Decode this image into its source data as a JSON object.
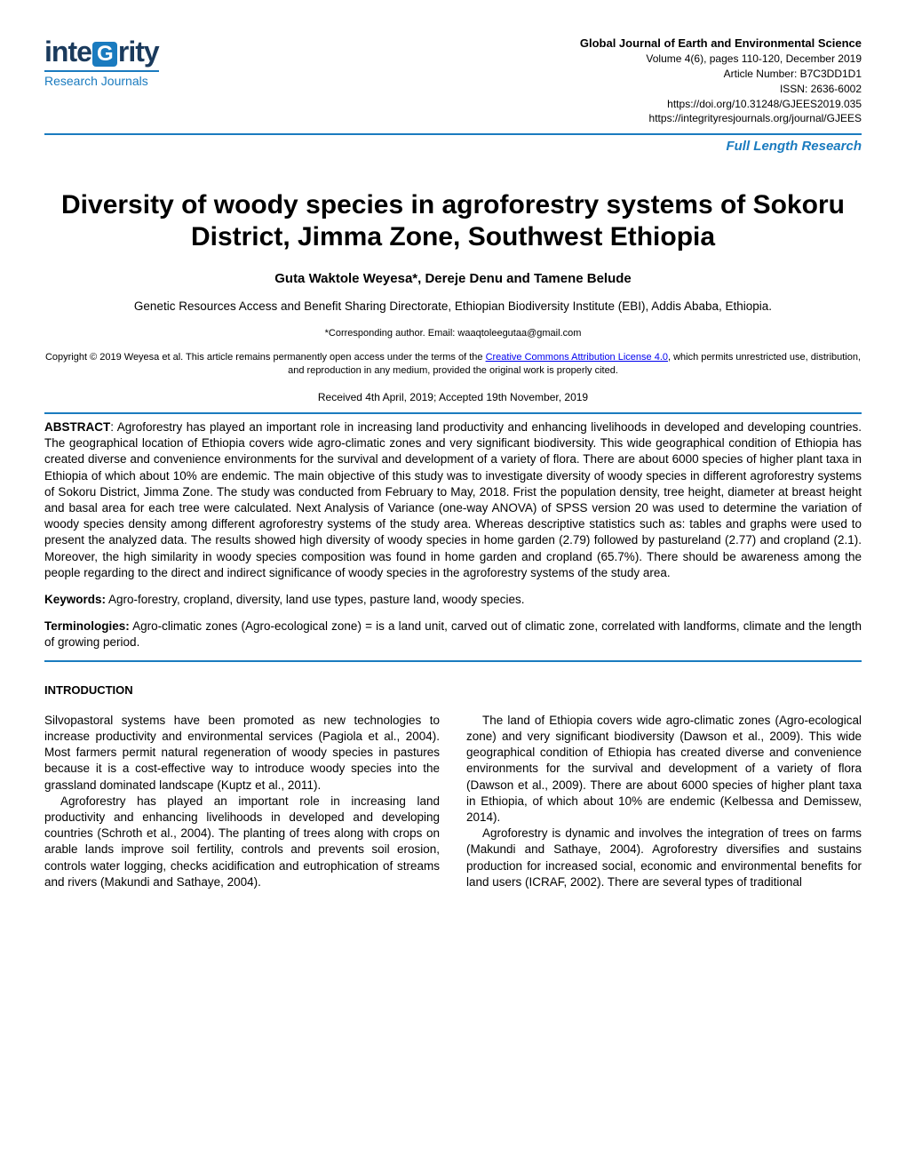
{
  "logo": {
    "main_pre": "inte",
    "main_g": "G",
    "main_post": "rity",
    "sub": "Research Journals"
  },
  "journal": {
    "title": "Global Journal of Earth and Environmental Science",
    "volume": "Volume 4(6), pages 110-120, December 2019",
    "article_number": "Article Number: B7C3DD1D1",
    "issn": "ISSN: 2636-6002",
    "doi": "https://doi.org/10.31248/GJEES2019.035",
    "url": "https://integrityresjournals.org/journal/GJEES"
  },
  "article_type": "Full Length Research",
  "title": "Diversity of woody species in agroforestry systems of Sokoru District, Jimma Zone, Southwest Ethiopia",
  "authors": "Guta Waktole Weyesa*, Dereje Denu and Tamene Belude",
  "affiliation": "Genetic Resources Access and Benefit Sharing Directorate, Ethiopian Biodiversity Institute (EBI), Addis Ababa, Ethiopia.",
  "corresponding": "*Corresponding author. Email: waaqtoleegutaa@gmail.com",
  "copyright_pre": "Copyright © 2019 Weyesa et al. This article remains permanently open access under the terms of the ",
  "copyright_link": "Creative Commons Attribution License 4.0",
  "copyright_post": ", which permits unrestricted use, distribution, and reproduction in any medium, provided the original work is properly cited.",
  "dates": "Received 4th April, 2019; Accepted 19th November, 2019",
  "abstract_label": "ABSTRACT",
  "abstract": ": Agroforestry has played an important role in increasing land productivity and enhancing livelihoods in developed and developing countries. The geographical location of Ethiopia covers wide agro-climatic zones and very significant biodiversity. This wide geographical condition of Ethiopia has created diverse and convenience environments for the survival and development of a variety of flora. There are about 6000 species of higher plant taxa in Ethiopia of which about 10% are endemic. The main objective of this study was to investigate diversity of woody species in different agroforestry systems of Sokoru District, Jimma Zone. The study was conducted from February to May, 2018. Frist the population density, tree height, diameter at breast height and basal area for each tree were calculated. Next Analysis of Variance (one-way ANOVA) of SPSS version 20 was used to determine the variation of woody species density among different agroforestry systems of the study area. Whereas descriptive statistics such as: tables and graphs were used to present the analyzed data. The results showed high diversity of woody species in home garden (2.79) followed by pastureland (2.77) and cropland (2.1). Moreover, the high similarity in woody species composition was found in home garden and cropland (65.7%). There should be awareness among the people regarding to the direct and indirect significance of woody species in the agroforestry systems of the study area.",
  "keywords_label": "Keywords:",
  "keywords": " Agro-forestry, cropland, diversity, land use types, pasture land, woody species.",
  "terminologies_label": "Terminologies:",
  "terminologies": " Agro-climatic zones (Agro-ecological zone) = is a land unit, carved out of climatic zone, correlated with landforms, climate and the length of growing period.",
  "intro_heading": "INTRODUCTION",
  "col1_p1": "Silvopastoral systems have been promoted as new technologies to increase productivity and environmental services (Pagiola et al., 2004). Most farmers permit natural regeneration of woody species in pastures because it is a cost-effective way to introduce woody species into the grassland dominated landscape (Kuptz et al., 2011).",
  "col1_p2": "Agroforestry has played an important role in increasing land productivity and enhancing livelihoods in developed and developing countries (Schroth et al., 2004). The planting of trees along with crops on arable lands improve soil fertility, controls and prevents soil erosion, controls water logging, checks acidification and eutrophication of streams and rivers (Makundi and Sathaye, 2004).",
  "col2_p1": "The land of Ethiopia covers wide agro-climatic zones (Agro-ecological zone) and very significant biodiversity (Dawson et al., 2009). This wide geographical condition of Ethiopia has created diverse and convenience environments for the survival and development of a variety of flora (Dawson et al., 2009). There are about 6000 species of higher plant taxa in Ethiopia, of which about 10% are endemic (Kelbessa and Demissew, 2014).",
  "col2_p2": "Agroforestry is dynamic and involves the integration of trees on farms (Makundi and Sathaye, 2004). Agroforestry diversifies and sustains production for increased social, economic and environmental benefits for land users (ICRAF, 2002). There  are  several  types of traditional"
}
